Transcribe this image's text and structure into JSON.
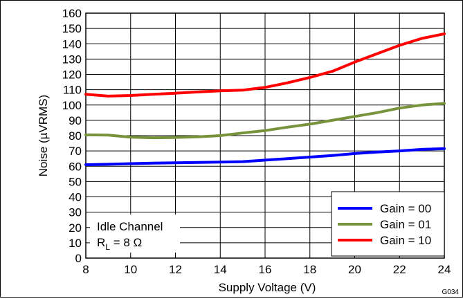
{
  "chart_data": {
    "type": "line",
    "xlabel": "Supply Voltage (V)",
    "ylabel": "Noise (µVRMS)",
    "xlim": [
      8,
      24
    ],
    "ylim": [
      0,
      160
    ],
    "xticks": [
      8,
      10,
      12,
      14,
      16,
      18,
      20,
      22,
      24
    ],
    "yticks": [
      0,
      10,
      20,
      30,
      40,
      50,
      60,
      70,
      80,
      90,
      100,
      110,
      120,
      130,
      140,
      150,
      160
    ],
    "grid": true,
    "legend_position": "bottom-right",
    "figure_id": "G034",
    "annotation": {
      "line1": "Idle Channel",
      "r_symbol": "R",
      "r_subscript": "L",
      "r_value": " = 8 Ω"
    },
    "series": [
      {
        "name": "Gain = 00",
        "color": "#0000ff",
        "x": [
          8,
          9,
          10,
          11,
          12,
          13,
          14,
          15,
          16,
          17,
          18,
          19,
          20,
          21,
          22,
          23,
          24
        ],
        "y": [
          61,
          61.3,
          61.7,
          62,
          62.3,
          62.5,
          62.7,
          63,
          64,
          65,
          66,
          67,
          68.3,
          69.3,
          70,
          71,
          71.5
        ]
      },
      {
        "name": "Gain = 01",
        "color": "#77933c",
        "x": [
          8,
          9,
          10,
          11,
          12,
          13,
          14,
          15,
          16,
          17,
          18,
          19,
          20,
          21,
          22,
          23,
          24
        ],
        "y": [
          80.5,
          80.3,
          79,
          78.6,
          78.8,
          79.2,
          80,
          81.7,
          83.3,
          85.5,
          87.5,
          90,
          92.5,
          95,
          98,
          100,
          101
        ]
      },
      {
        "name": "Gain = 10",
        "color": "#ff0000",
        "x": [
          8,
          9,
          10,
          11,
          12,
          13,
          14,
          15,
          16,
          17,
          18,
          19,
          20,
          21,
          22,
          23,
          24
        ],
        "y": [
          107,
          105.8,
          106.2,
          107,
          107.7,
          108.5,
          109.3,
          109.7,
          111.5,
          114.5,
          118,
          122,
          128,
          133.5,
          139,
          143.5,
          146.5
        ]
      }
    ]
  }
}
